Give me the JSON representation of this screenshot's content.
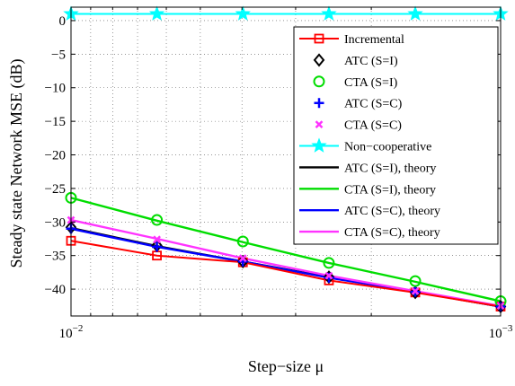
{
  "chart_data": {
    "type": "line",
    "xscale": "log",
    "x_reversed": true,
    "xlabel": "Step−size μ",
    "ylabel": "Steady state Network MSE (dB)",
    "xlim": [
      0.01,
      0.001
    ],
    "ylim": [
      -44,
      2
    ],
    "grid": true,
    "legend_position": "top-right",
    "x_ticks": [
      {
        "value": 0.01,
        "base": "10",
        "exp": "−2"
      },
      {
        "value": 0.001,
        "base": "10",
        "exp": "−3"
      }
    ],
    "y_ticks": [
      {
        "value": 0,
        "label": "0"
      },
      {
        "value": -5,
        "label": "−5"
      },
      {
        "value": -10,
        "label": "−10"
      },
      {
        "value": -15,
        "label": "−15"
      },
      {
        "value": -20,
        "label": "−20"
      },
      {
        "value": -25,
        "label": "−25"
      },
      {
        "value": -30,
        "label": "−30"
      },
      {
        "value": -35,
        "label": "−35"
      },
      {
        "value": -40,
        "label": "−40"
      }
    ],
    "x": [
      0.01,
      0.00631,
      0.00398,
      0.00251,
      0.00158,
      0.001
    ],
    "series": [
      {
        "name": "Incremental",
        "color": "#ff0000",
        "marker": "square",
        "line": true,
        "values": [
          -32.8,
          -35.0,
          -36.0,
          -38.7,
          -40.5,
          -42.6
        ]
      },
      {
        "name": "ATC (S=I)",
        "color": "#000000",
        "marker": "diamond",
        "line": false,
        "values": [
          -30.8,
          -33.5,
          -35.9,
          -38.2,
          -40.5,
          -42.6
        ]
      },
      {
        "name": "CTA (S=I)",
        "color": "#00dd00",
        "marker": "circle",
        "line": false,
        "values": [
          -26.4,
          -29.7,
          -32.9,
          -36.1,
          -38.8,
          -41.8
        ]
      },
      {
        "name": "ATC (S=C)",
        "color": "#0000ff",
        "marker": "plus",
        "line": false,
        "values": [
          -31.0,
          -33.7,
          -35.9,
          -38.3,
          -40.4,
          -42.6
        ]
      },
      {
        "name": "CTA (S=C)",
        "color": "#ff33ff",
        "marker": "x",
        "line": false,
        "values": [
          -29.7,
          -32.6,
          -35.4,
          -38.0,
          -40.3,
          -42.5
        ]
      },
      {
        "name": "Non−cooperative",
        "color": "#00ffff",
        "marker": "star",
        "line": true,
        "values": [
          1.0,
          1.0,
          1.0,
          1.0,
          1.0,
          1.0
        ]
      },
      {
        "name": "ATC (S=I), theory",
        "color": "#000000",
        "marker": "none",
        "line": true,
        "values": [
          -30.9,
          -33.6,
          -35.9,
          -38.2,
          -40.4,
          -42.6
        ]
      },
      {
        "name": "CTA (S=I), theory",
        "color": "#00dd00",
        "marker": "none",
        "line": true,
        "values": [
          -26.4,
          -29.8,
          -33.0,
          -36.1,
          -38.9,
          -41.8
        ]
      },
      {
        "name": "ATC (S=C), theory",
        "color": "#0000ff",
        "marker": "none",
        "line": true,
        "values": [
          -31.0,
          -33.7,
          -35.9,
          -38.3,
          -40.4,
          -42.6
        ]
      },
      {
        "name": "CTA (S=C), theory",
        "color": "#ff33ff",
        "marker": "none",
        "line": true,
        "values": [
          -29.7,
          -32.5,
          -35.4,
          -38.0,
          -40.3,
          -42.5
        ]
      }
    ]
  }
}
